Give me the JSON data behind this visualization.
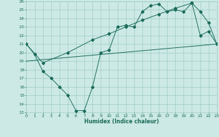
{
  "xlabel": "Humidex (Indice chaleur)",
  "xlim": [
    0,
    23
  ],
  "ylim": [
    13,
    26
  ],
  "yticks": [
    13,
    14,
    15,
    16,
    17,
    18,
    19,
    20,
    21,
    22,
    23,
    24,
    25,
    26
  ],
  "xticks": [
    0,
    1,
    2,
    3,
    4,
    5,
    6,
    7,
    8,
    9,
    10,
    11,
    12,
    13,
    14,
    15,
    16,
    17,
    18,
    19,
    20,
    21,
    22,
    23
  ],
  "bg_color": "#cce9e5",
  "grid_color": "#9fccc7",
  "line_color": "#1a6b5a",
  "line1_x": [
    0,
    1,
    2,
    3,
    4,
    5,
    6,
    7,
    8,
    9,
    10,
    11,
    12,
    13,
    14,
    15,
    16,
    17,
    18,
    19,
    20,
    21,
    22,
    23
  ],
  "line1_y": [
    21.0,
    19.8,
    17.8,
    17.0,
    16.0,
    15.0,
    13.2,
    13.2,
    16.0,
    20.0,
    20.3,
    23.0,
    23.2,
    23.0,
    24.8,
    25.5,
    25.7,
    24.8,
    25.0,
    24.8,
    25.8,
    22.0,
    22.5,
    21.0
  ],
  "line2_x": [
    0,
    23
  ],
  "line2_y": [
    19.0,
    21.0
  ],
  "line3_x": [
    0,
    2,
    5,
    8,
    10,
    12,
    14,
    16,
    18,
    20,
    21,
    22,
    23
  ],
  "line3_y": [
    21.0,
    18.8,
    20.0,
    21.5,
    22.2,
    23.0,
    23.8,
    24.5,
    25.2,
    25.8,
    24.8,
    23.5,
    21.0
  ]
}
